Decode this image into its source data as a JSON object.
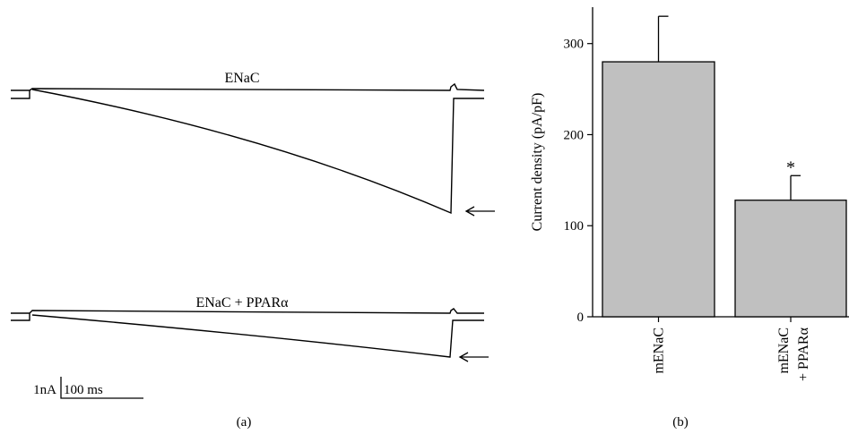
{
  "panel_a": {
    "panel_label": "(a)",
    "traces": [
      {
        "label": "ENaC"
      },
      {
        "label": "ENaC + PPARα"
      }
    ],
    "scalebar": {
      "current_label": "1nA",
      "time_label": "100 ms"
    }
  },
  "chart_data": {
    "type": "bar",
    "panel_label": "(b)",
    "categories": [
      {
        "lines": [
          "mENaC"
        ]
      },
      {
        "lines": [
          "mENaC",
          "+ PPARα"
        ]
      }
    ],
    "values": [
      280,
      128
    ],
    "errors": [
      50,
      27
    ],
    "significance": [
      "",
      "*"
    ],
    "ylabel": "Current density (pA/pF)",
    "ylim": [
      0,
      340
    ],
    "yticks": [
      0,
      100,
      200,
      300
    ],
    "bar_color": "#c0c0c0",
    "grid": false,
    "legend": false
  }
}
